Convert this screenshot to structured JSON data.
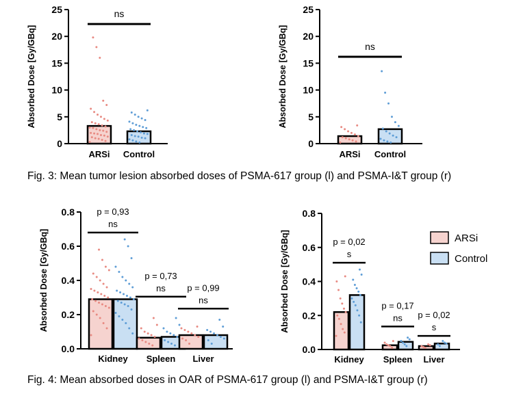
{
  "captions": {
    "fig3": "Fig. 3: Mean tumor lesion absorbed doses of PSMA-617 group (l) and PSMA-I&T group (r)",
    "fig4": "Fig. 4: Mean absorbed doses in OAR of PSMA-617 group (l) and PSMA-I&T group (r)"
  },
  "legend": {
    "position": "right of bottom-right chart",
    "entries": [
      {
        "label": "ARSi",
        "color": "#f6d3cf"
      },
      {
        "label": "Control",
        "color": "#c9dff3"
      }
    ]
  },
  "colors": {
    "arsi_fill": "#f6d3cf",
    "control_fill": "#c9dff3",
    "arsi_dot": "#e88a82",
    "control_dot": "#5e9dd6",
    "stroke": "#000000"
  },
  "chart_data": [
    {
      "id": "fig3-left",
      "type": "bar",
      "ylabel": "Absorbed Dose [Gy/GBq]",
      "ylim": [
        0,
        25
      ],
      "yticks": [
        0,
        5,
        10,
        15,
        20,
        25
      ],
      "ytick_labels": [
        "0",
        "5",
        "10",
        "15",
        "20",
        "25"
      ],
      "categories": [
        "ARSi",
        "Control"
      ],
      "values": [
        3.3,
        2.3
      ],
      "points": [
        [
          0.3,
          0.5,
          0.7,
          0.9,
          1.0,
          1.2,
          1.3,
          1.5,
          1.6,
          1.8,
          1.9,
          2.0,
          2.2,
          2.4,
          2.5,
          2.7,
          2.9,
          3.0,
          3.2,
          3.4,
          3.6,
          3.8,
          4.0,
          4.3,
          4.6,
          5.0,
          5.4,
          5.9,
          6.5,
          7.2,
          8.0,
          16.0,
          18.0,
          19.8
        ],
        [
          0.2,
          0.4,
          0.6,
          0.8,
          1.0,
          1.1,
          1.3,
          1.4,
          1.6,
          1.8,
          1.9,
          2.1,
          2.3,
          2.5,
          2.7,
          2.9,
          3.1,
          3.3,
          3.5,
          3.8,
          4.1,
          4.4,
          4.7,
          5.0,
          5.4,
          5.8,
          6.2
        ]
      ],
      "annotations": [
        {
          "between": [
            0,
            1
          ],
          "y": 22.3,
          "text": "ns"
        }
      ]
    },
    {
      "id": "fig3-right",
      "type": "bar",
      "ylabel": "Absorbed Dose [Gy/GBq]",
      "ylim": [
        0,
        25
      ],
      "yticks": [
        0,
        5,
        10,
        15,
        20,
        25
      ],
      "ytick_labels": [
        "0",
        "5",
        "10",
        "15",
        "20",
        "25"
      ],
      "categories": [
        "ARSi",
        "Control"
      ],
      "values": [
        1.4,
        2.7
      ],
      "points": [
        [
          0.2,
          0.4,
          0.6,
          0.8,
          1.0,
          1.2,
          1.4,
          1.7,
          2.0,
          2.3,
          2.7,
          3.1,
          3.4
        ],
        [
          0.2,
          0.4,
          0.6,
          0.9,
          1.2,
          1.5,
          1.9,
          2.3,
          2.8,
          3.3,
          4.0,
          5.0,
          7.5,
          9.5,
          13.5
        ]
      ],
      "annotations": [
        {
          "between": [
            0,
            1
          ],
          "y": 16.2,
          "text": "ns"
        }
      ]
    },
    {
      "id": "fig4-left",
      "type": "bar",
      "ylabel": "Absorbed Dose [Gy/GBq]",
      "ylim": [
        0,
        0.8
      ],
      "yticks": [
        0,
        0.2,
        0.4,
        0.6,
        0.8
      ],
      "ytick_labels": [
        "0.0",
        "0.2",
        "0.4",
        "0.6",
        "0.8"
      ],
      "categories": [
        "Kidney",
        "Spleen",
        "Liver"
      ],
      "series": [
        {
          "name": "ARSi",
          "values": [
            0.29,
            0.065,
            0.08
          ]
        },
        {
          "name": "Control",
          "values": [
            0.29,
            0.07,
            0.08
          ]
        }
      ],
      "points": [
        [
          [
            0.08,
            0.12,
            0.15,
            0.18,
            0.2,
            0.22,
            0.24,
            0.25,
            0.26,
            0.27,
            0.28,
            0.29,
            0.3,
            0.31,
            0.32,
            0.33,
            0.34,
            0.35,
            0.36,
            0.38,
            0.4,
            0.42,
            0.44,
            0.46,
            0.48,
            0.52,
            0.58
          ],
          [
            0.09,
            0.12,
            0.15,
            0.17,
            0.19,
            0.21,
            0.23,
            0.25,
            0.26,
            0.27,
            0.28,
            0.29,
            0.3,
            0.31,
            0.32,
            0.33,
            0.34,
            0.36,
            0.38,
            0.4,
            0.42,
            0.45,
            0.48,
            0.53,
            0.6,
            0.64
          ]
        ],
        [
          [
            0.02,
            0.03,
            0.04,
            0.05,
            0.06,
            0.07,
            0.08,
            0.09,
            0.1,
            0.12,
            0.14,
            0.18
          ],
          [
            0.02,
            0.03,
            0.04,
            0.05,
            0.06,
            0.07,
            0.08,
            0.09,
            0.1,
            0.12,
            0.14,
            0.18
          ]
        ],
        [
          [
            0.03,
            0.05,
            0.06,
            0.07,
            0.08,
            0.09,
            0.1,
            0.11,
            0.12,
            0.13
          ],
          [
            0.03,
            0.05,
            0.06,
            0.07,
            0.08,
            0.09,
            0.1,
            0.11,
            0.13,
            0.17
          ]
        ]
      ],
      "annotations": [
        {
          "group": 0,
          "y": 0.68,
          "text": "ns",
          "p": "p = 0,93"
        },
        {
          "group": 1,
          "y": 0.305,
          "text": "ns",
          "p": "p = 0,73"
        },
        {
          "group": 2,
          "y": 0.235,
          "text": "ns",
          "p": "p = 0,99"
        }
      ]
    },
    {
      "id": "fig4-right",
      "type": "bar",
      "ylabel": "Absorbed Dose [Gy/GBq]",
      "ylim": [
        0,
        0.8
      ],
      "yticks": [
        0,
        0.2,
        0.4,
        0.6,
        0.8
      ],
      "ytick_labels": [
        "0.0",
        "0.2",
        "0.4",
        "0.6",
        "0.8"
      ],
      "categories": [
        "Kidney",
        "Spleen",
        "Liver"
      ],
      "series": [
        {
          "name": "ARSi",
          "values": [
            0.22,
            0.025,
            0.02
          ]
        },
        {
          "name": "Control",
          "values": [
            0.32,
            0.045,
            0.035
          ]
        }
      ],
      "points": [
        [
          [
            0.08,
            0.1,
            0.12,
            0.15,
            0.18,
            0.2,
            0.22,
            0.24,
            0.27,
            0.3,
            0.35,
            0.4,
            0.43
          ],
          [
            0.16,
            0.2,
            0.23,
            0.26,
            0.28,
            0.3,
            0.32,
            0.34,
            0.36,
            0.38,
            0.41,
            0.44,
            0.47
          ]
        ],
        [
          [
            0.01,
            0.02,
            0.025,
            0.03,
            0.04,
            0.05
          ],
          [
            0.02,
            0.03,
            0.04,
            0.05,
            0.06,
            0.07
          ]
        ],
        [
          [
            0.01,
            0.015,
            0.02,
            0.025,
            0.03
          ],
          [
            0.02,
            0.03,
            0.035,
            0.04,
            0.05
          ]
        ]
      ],
      "annotations": [
        {
          "group": 0,
          "y": 0.51,
          "text": "s",
          "p": "p = 0,02"
        },
        {
          "group": 1,
          "y": 0.135,
          "text": "ns",
          "p": "p = 0,17"
        },
        {
          "group": 2,
          "y": 0.08,
          "text": "s",
          "p": "p = 0,02"
        }
      ]
    }
  ]
}
